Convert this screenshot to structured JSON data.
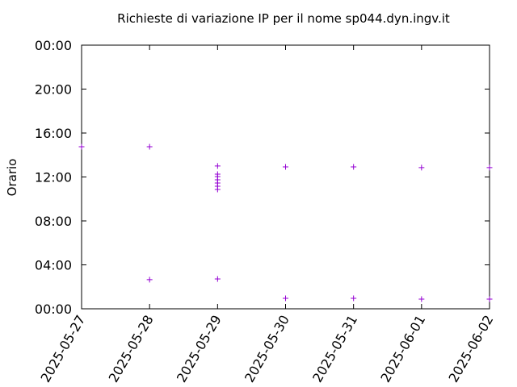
{
  "chart_data": {
    "type": "scatter",
    "title": "Richieste di variazione IP per il nome sp044.dyn.ingv.it",
    "y_label": "Orario",
    "x": [
      "2025-05-27",
      "2025-05-28",
      "2025-05-28",
      "2025-05-29",
      "2025-05-29",
      "2025-05-29",
      "2025-05-29",
      "2025-05-29",
      "2025-05-29",
      "2025-05-29",
      "2025-05-29",
      "2025-05-30",
      "2025-05-30",
      "2025-05-31",
      "2025-05-31",
      "2025-06-01",
      "2025-06-01",
      "2025-06-02",
      "2025-06-02"
    ],
    "values": [
      14.75,
      14.75,
      2.65,
      13.0,
      12.26,
      12.04,
      11.74,
      11.45,
      11.16,
      10.86,
      2.72,
      12.92,
      0.95,
      12.92,
      0.95,
      12.85,
      0.88,
      12.85,
      0.88
    ],
    "color": "#9400d3",
    "xlim": [
      "2025-05-27",
      "2025-06-02"
    ],
    "xticks": [
      "2025-05-27",
      "2025-05-28",
      "2025-05-29",
      "2025-05-30",
      "2025-05-31",
      "2025-06-01",
      "2025-06-02"
    ],
    "ylim": [
      0,
      24
    ],
    "yticks": [
      {
        "value": 0,
        "label": "00:00"
      },
      {
        "value": 4,
        "label": "04:00"
      },
      {
        "value": 8,
        "label": "08:00"
      },
      {
        "value": 12,
        "label": "12:00"
      },
      {
        "value": 16,
        "label": "16:00"
      },
      {
        "value": 20,
        "label": "20:00"
      },
      {
        "value": 24,
        "label": "00:00"
      }
    ],
    "grid": false
  }
}
